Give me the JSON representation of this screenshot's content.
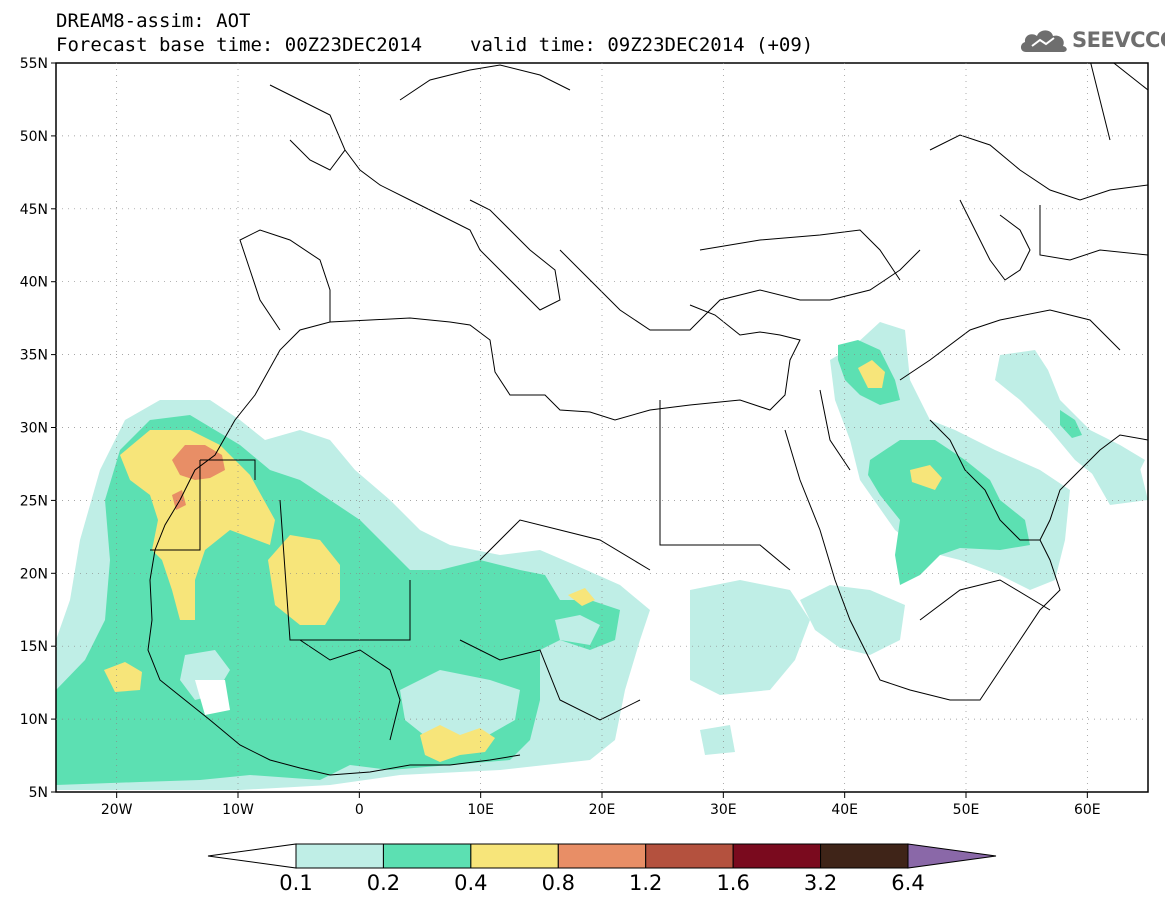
{
  "header": {
    "model_line": "DREAM8-assim: AOT",
    "base_time": "Forecast base time: 00Z23DEC2014",
    "valid_time": "valid time: 09Z23DEC2014 (+09)"
  },
  "logo": {
    "text": "SEEVCCC",
    "icon": "cloud-logo-icon"
  },
  "map": {
    "lon_range": [
      -25,
      65
    ],
    "lat_range": [
      5,
      55
    ],
    "lat_ticks": [
      {
        "value": 55,
        "label": "55N"
      },
      {
        "value": 50,
        "label": "50N"
      },
      {
        "value": 45,
        "label": "45N"
      },
      {
        "value": 40,
        "label": "40N"
      },
      {
        "value": 35,
        "label": "35N"
      },
      {
        "value": 30,
        "label": "30N"
      },
      {
        "value": 25,
        "label": "25N"
      },
      {
        "value": 20,
        "label": "20N"
      },
      {
        "value": 15,
        "label": "15N"
      },
      {
        "value": 10,
        "label": "10N"
      },
      {
        "value": 5,
        "label": "5N"
      }
    ],
    "lon_ticks": [
      {
        "value": -20,
        "label": "20W"
      },
      {
        "value": -10,
        "label": "10W"
      },
      {
        "value": 0,
        "label": "0"
      },
      {
        "value": 10,
        "label": "10E"
      },
      {
        "value": 20,
        "label": "20E"
      },
      {
        "value": 30,
        "label": "30E"
      },
      {
        "value": 40,
        "label": "40E"
      },
      {
        "value": 50,
        "label": "50E"
      },
      {
        "value": 60,
        "label": "60E"
      }
    ],
    "gridlines": "dotted"
  },
  "colorbar": {
    "levels": [
      "0.1",
      "0.2",
      "0.4",
      "0.8",
      "1.2",
      "1.6",
      "3.2",
      "6.4"
    ],
    "colors": [
      "#ffffff",
      "#bfeee6",
      "#5ce0b2",
      "#f7e57a",
      "#e88e66",
      "#b4513e",
      "#7a0a1e",
      "#3f2418",
      "#8a68a8"
    ]
  }
}
